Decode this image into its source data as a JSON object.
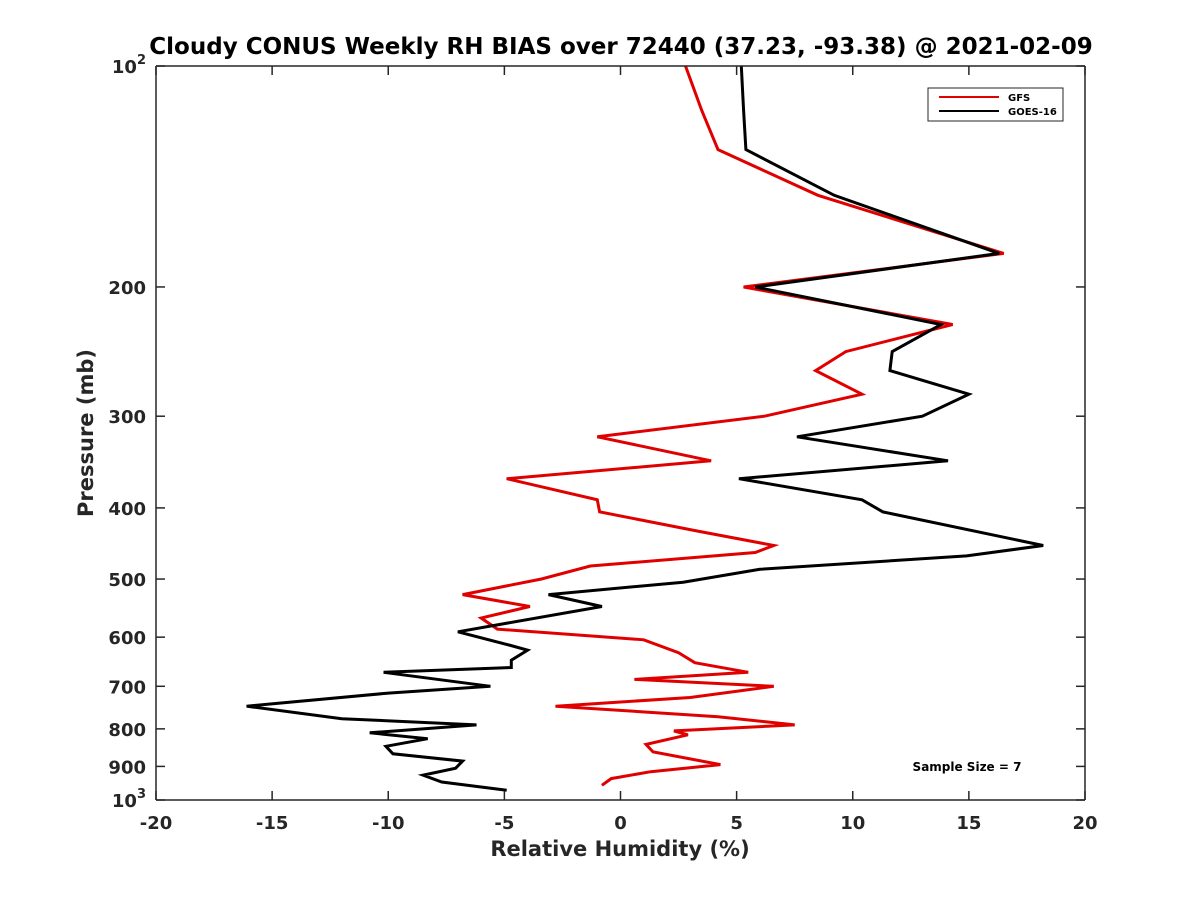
{
  "chart_data": {
    "type": "line",
    "title": "Cloudy CONUS Weekly RH BIAS over 72440 (37.23, -93.38) @ 2021-02-09",
    "xlabel": "Relative Humidity (%)",
    "ylabel": "Pressure (mb)",
    "xlim": [
      -20,
      20
    ],
    "ylim": [
      100,
      1000
    ],
    "y_scale": "log",
    "y_reversed": true,
    "grid": false,
    "legend_position": "top-right",
    "x_ticks": [
      "-20",
      "-15",
      "-10",
      "-5",
      "0",
      "5",
      "10",
      "15",
      "20"
    ],
    "y_ticks": [
      {
        "value": 100,
        "base": "10",
        "exp": "2"
      },
      {
        "value": 200,
        "label": "200"
      },
      {
        "value": 300,
        "label": "300"
      },
      {
        "value": 400,
        "label": "400"
      },
      {
        "value": 500,
        "label": "500"
      },
      {
        "value": 600,
        "label": "600"
      },
      {
        "value": 700,
        "label": "700"
      },
      {
        "value": 800,
        "label": "800"
      },
      {
        "value": 900,
        "label": "900"
      },
      {
        "value": 1000,
        "base": "10",
        "exp": "3"
      }
    ],
    "annotation": "Sample Size = 7",
    "series": [
      {
        "name": "GFS",
        "color": "#e00000",
        "points": [
          [
            2.8,
            100
          ],
          [
            3.5,
            115
          ],
          [
            4.2,
            130
          ],
          [
            8.5,
            150
          ],
          [
            16.5,
            180
          ],
          [
            5.3,
            200
          ],
          [
            14.3,
            225
          ],
          [
            9.7,
            245
          ],
          [
            8.4,
            260
          ],
          [
            10.4,
            280
          ],
          [
            6.2,
            300
          ],
          [
            -1.0,
            320
          ],
          [
            3.9,
            345
          ],
          [
            -4.9,
            365
          ],
          [
            -1.0,
            390
          ],
          [
            -0.9,
            405
          ],
          [
            3.3,
            430
          ],
          [
            6.6,
            450
          ],
          [
            5.8,
            460
          ],
          [
            -1.3,
            480
          ],
          [
            -3.4,
            500
          ],
          [
            -6.8,
            525
          ],
          [
            -3.9,
            545
          ],
          [
            -6.0,
            565
          ],
          [
            -5.3,
            585
          ],
          [
            1.0,
            605
          ],
          [
            2.5,
            630
          ],
          [
            3.2,
            650
          ],
          [
            5.5,
            670
          ],
          [
            0.6,
            685
          ],
          [
            6.6,
            700
          ],
          [
            3.0,
            725
          ],
          [
            -2.8,
            745
          ],
          [
            4.2,
            770
          ],
          [
            7.5,
            790
          ],
          [
            2.3,
            805
          ],
          [
            2.9,
            815
          ],
          [
            1.1,
            840
          ],
          [
            1.4,
            860
          ],
          [
            4.3,
            895
          ],
          [
            1.3,
            915
          ],
          [
            -0.4,
            935
          ],
          [
            -0.8,
            955
          ]
        ]
      },
      {
        "name": "GOES-16",
        "color": "#000000",
        "points": [
          [
            5.2,
            100
          ],
          [
            5.3,
            115
          ],
          [
            5.4,
            130
          ],
          [
            9.2,
            150
          ],
          [
            16.3,
            180
          ],
          [
            5.8,
            200
          ],
          [
            13.8,
            225
          ],
          [
            11.7,
            245
          ],
          [
            11.6,
            260
          ],
          [
            15.0,
            280
          ],
          [
            13.0,
            300
          ],
          [
            7.6,
            320
          ],
          [
            14.1,
            345
          ],
          [
            5.1,
            365
          ],
          [
            10.4,
            390
          ],
          [
            11.3,
            405
          ],
          [
            18.2,
            450
          ],
          [
            14.9,
            465
          ],
          [
            6.0,
            485
          ],
          [
            2.7,
            505
          ],
          [
            -3.1,
            525
          ],
          [
            -0.8,
            545
          ],
          [
            -7.0,
            590
          ],
          [
            -4.8,
            615
          ],
          [
            -4.0,
            625
          ],
          [
            -4.7,
            645
          ],
          [
            -4.7,
            660
          ],
          [
            -10.2,
            670
          ],
          [
            -5.6,
            700
          ],
          [
            -10.0,
            715
          ],
          [
            -16.1,
            745
          ],
          [
            -12.0,
            775
          ],
          [
            -6.2,
            790
          ],
          [
            -10.8,
            810
          ],
          [
            -8.3,
            825
          ],
          [
            -10.1,
            845
          ],
          [
            -9.8,
            865
          ],
          [
            -6.8,
            885
          ],
          [
            -7.1,
            905
          ],
          [
            -8.5,
            925
          ],
          [
            -7.7,
            945
          ],
          [
            -4.9,
            970
          ]
        ]
      }
    ]
  }
}
